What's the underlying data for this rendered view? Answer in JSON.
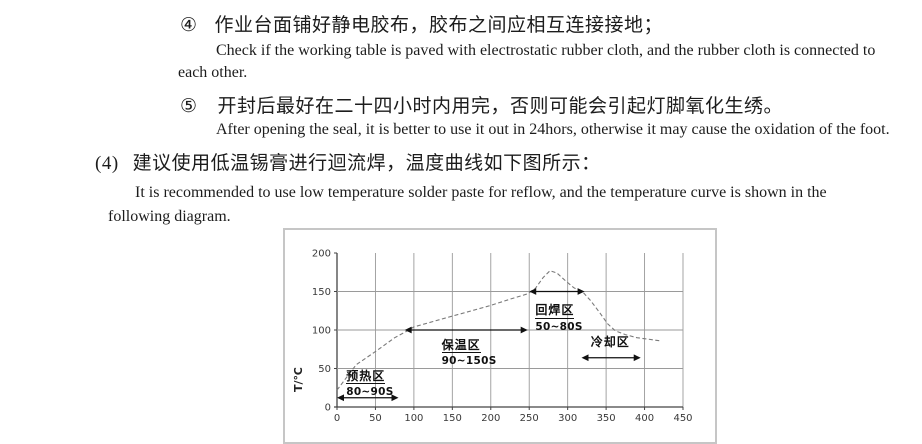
{
  "doc": {
    "item4": {
      "marker": "④",
      "zh": "作业台面铺好静电胶布，胶布之间应相互连接接地；",
      "en_line1": "Check if the working table is paved with electrostatic rubber cloth, and the rubber cloth is connected to",
      "en_line2": "each other."
    },
    "item5": {
      "marker": "⑤",
      "zh": "开封后最好在二十四小时内用完，否则可能会引起灯脚氧化生绣。",
      "en_line1": "After opening the seal, it is better to use it  out in 24hors, otherwise it may cause the oxidation of the foot."
    },
    "item_paren4": {
      "marker": "(4)",
      "zh": "建议使用低温锡膏进行迴流焊，温度曲线如下图所示：",
      "en_line1": "It is recommended to use low temperature solder paste for reflow, and the temperature curve is shown in the",
      "en_line2": "following diagram."
    }
  },
  "chart_data": {
    "type": "line",
    "title": "",
    "xlabel": "",
    "ylabel": "T/℃",
    "xlim": [
      0,
      450
    ],
    "ylim": [
      0,
      200
    ],
    "x_ticks": [
      0,
      50,
      100,
      150,
      200,
      250,
      300,
      350,
      400,
      450
    ],
    "y_ticks": [
      0,
      50,
      100,
      150,
      200
    ],
    "grid": true,
    "legend": "none",
    "curve_points": [
      [
        0,
        22
      ],
      [
        25,
        55
      ],
      [
        50,
        72
      ],
      [
        75,
        90
      ],
      [
        90,
        98
      ],
      [
        100,
        104
      ],
      [
        125,
        111
      ],
      [
        150,
        118
      ],
      [
        175,
        125
      ],
      [
        200,
        132
      ],
      [
        225,
        140
      ],
      [
        248,
        147
      ],
      [
        258,
        154
      ],
      [
        268,
        168
      ],
      [
        277,
        177
      ],
      [
        286,
        174
      ],
      [
        297,
        164
      ],
      [
        308,
        155
      ],
      [
        320,
        149
      ],
      [
        330,
        138
      ],
      [
        342,
        122
      ],
      [
        352,
        108
      ],
      [
        362,
        99
      ],
      [
        375,
        94
      ],
      [
        390,
        90
      ],
      [
        405,
        88
      ],
      [
        420,
        86
      ]
    ],
    "zones": [
      {
        "name": "预热区",
        "duration": "80~90S",
        "underline": true,
        "label_x": 12,
        "label_y": 55,
        "arrow": {
          "x1": 0,
          "x2": 80,
          "y": 12
        }
      },
      {
        "name": "保温区",
        "duration": "90~150S",
        "underline": true,
        "label_x": 136,
        "label_y": 95,
        "arrow": {
          "x1": 88,
          "x2": 248,
          "y": 100
        }
      },
      {
        "name": "回焊区",
        "duration": "50~80S",
        "underline": true,
        "label_x": 258,
        "label_y": 140,
        "arrow": {
          "x1": 250,
          "x2": 322,
          "y": 150
        }
      },
      {
        "name": "冷却区",
        "duration": "",
        "underline": false,
        "label_x": 330,
        "label_y": 99,
        "arrow": {
          "x1": 318,
          "x2": 395,
          "y": 64
        }
      }
    ]
  }
}
